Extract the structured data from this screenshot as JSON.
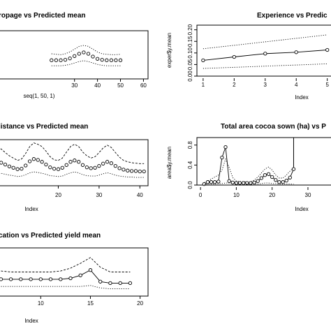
{
  "chart_data": [
    {
      "type": "line",
      "title": "ropage vs Predicted mean",
      "xlabel": "seq(1, 50, 1)",
      "ylabel": "",
      "xlim": [
        0,
        62
      ],
      "ylim": [
        0,
        1
      ],
      "x_ticks": [
        "30",
        "40",
        "50",
        "60"
      ],
      "y_ticks": [],
      "x": [
        20,
        22,
        24,
        26,
        28,
        30,
        32,
        34,
        36,
        38,
        40,
        42,
        44,
        46,
        48,
        50
      ],
      "series": [
        {
          "role": "upper",
          "style": "dotted",
          "values": [
            0.5,
            0.49,
            0.48,
            0.5,
            0.54,
            0.6,
            0.66,
            0.68,
            0.66,
            0.6,
            0.54,
            0.5,
            0.49,
            0.48,
            0.48,
            0.49
          ]
        },
        {
          "role": "mean",
          "style": "points",
          "values": [
            0.36,
            0.36,
            0.36,
            0.37,
            0.4,
            0.45,
            0.5,
            0.53,
            0.5,
            0.44,
            0.39,
            0.37,
            0.36,
            0.36,
            0.36,
            0.36
          ]
        },
        {
          "role": "lower",
          "style": "dotted",
          "values": [
            0.24,
            0.24,
            0.24,
            0.25,
            0.27,
            0.3,
            0.33,
            0.35,
            0.33,
            0.3,
            0.27,
            0.25,
            0.24,
            0.24,
            0.24,
            0.24
          ]
        }
      ]
    },
    {
      "type": "line",
      "title": "Experience vs Predic",
      "xlabel": "Index",
      "ylabel": "exper$y.mean",
      "xlim": [
        0.8,
        5.3
      ],
      "ylim": [
        0,
        0.22
      ],
      "x_ticks": [
        "1",
        "2",
        "3",
        "4",
        "5"
      ],
      "y_ticks": [
        "0.00",
        "0.05",
        "0.10",
        "0.15",
        "0.20"
      ],
      "x": [
        1,
        2,
        3,
        4,
        5
      ],
      "series": [
        {
          "role": "upper",
          "style": "dotted",
          "values": [
            0.118,
            0.133,
            0.148,
            0.163,
            0.178
          ]
        },
        {
          "role": "mean",
          "style": "line-points",
          "values": [
            0.068,
            0.083,
            0.097,
            0.103,
            0.113
          ]
        },
        {
          "role": "lower",
          "style": "dotted",
          "values": [
            0.033,
            0.038,
            0.043,
            0.048,
            0.053
          ]
        }
      ]
    },
    {
      "type": "line",
      "title": "listance vs Predicted mean",
      "xlabel": "Index",
      "ylabel": "",
      "xlim": [
        4,
        42
      ],
      "ylim": [
        0,
        1
      ],
      "x_ticks": [
        "20",
        "30",
        "40"
      ],
      "y_ticks": [],
      "x": [
        5,
        6,
        7,
        8,
        9,
        10,
        11,
        12,
        13,
        14,
        15,
        16,
        17,
        18,
        19,
        20,
        21,
        22,
        23,
        24,
        25,
        26,
        27,
        28,
        29,
        30,
        31,
        32,
        33,
        34,
        35,
        36,
        37,
        38,
        39,
        40,
        41
      ],
      "series": [
        {
          "role": "upper",
          "style": "dashed",
          "values": [
            0.78,
            0.8,
            0.72,
            0.65,
            0.6,
            0.55,
            0.58,
            0.7,
            0.85,
            0.93,
            0.9,
            0.85,
            0.75,
            0.63,
            0.56,
            0.55,
            0.6,
            0.73,
            0.85,
            0.9,
            0.85,
            0.73,
            0.65,
            0.6,
            0.63,
            0.72,
            0.82,
            0.88,
            0.83,
            0.72,
            0.62,
            0.55,
            0.52,
            0.5,
            0.49,
            0.48,
            0.48
          ]
        },
        {
          "role": "mean",
          "style": "points",
          "values": [
            0.48,
            0.5,
            0.46,
            0.42,
            0.39,
            0.36,
            0.37,
            0.44,
            0.53,
            0.58,
            0.56,
            0.52,
            0.46,
            0.4,
            0.37,
            0.36,
            0.39,
            0.45,
            0.52,
            0.55,
            0.52,
            0.45,
            0.4,
            0.38,
            0.39,
            0.43,
            0.48,
            0.52,
            0.49,
            0.43,
            0.38,
            0.35,
            0.33,
            0.32,
            0.32,
            0.31,
            0.31
          ]
        },
        {
          "role": "lower",
          "style": "dotted",
          "values": [
            0.26,
            0.27,
            0.25,
            0.23,
            0.22,
            0.2,
            0.21,
            0.24,
            0.28,
            0.3,
            0.29,
            0.27,
            0.25,
            0.22,
            0.21,
            0.2,
            0.21,
            0.25,
            0.28,
            0.3,
            0.28,
            0.24,
            0.22,
            0.21,
            0.21,
            0.23,
            0.26,
            0.28,
            0.26,
            0.23,
            0.21,
            0.2,
            0.19,
            0.19,
            0.18,
            0.18,
            0.18
          ]
        }
      ]
    },
    {
      "type": "line",
      "title": "Total area cocoa sown (ha) vs P",
      "xlabel": "Index",
      "ylabel": "area$y.mean",
      "xlim": [
        -1,
        38
      ],
      "ylim": [
        0,
        0.95
      ],
      "x_ticks": [
        "0",
        "10",
        "20",
        "30"
      ],
      "y_ticks": [
        "0.0",
        "0.4",
        "0.8"
      ],
      "x": [
        1,
        2,
        3,
        4,
        5,
        6,
        7,
        8,
        9,
        10,
        11,
        12,
        13,
        14,
        15,
        16,
        17,
        18,
        19,
        20,
        21,
        22,
        23,
        24,
        25,
        26
      ],
      "series": [
        {
          "role": "upper",
          "style": "dotted",
          "values": [
            0.05,
            0.08,
            0.12,
            0.16,
            0.2,
            0.3,
            0.52,
            0.35,
            0.15,
            0.08,
            0.07,
            0.07,
            0.06,
            0.06,
            0.1,
            0.16,
            0.24,
            0.32,
            0.36,
            0.3,
            0.2,
            0.14,
            0.14,
            0.2,
            0.28,
            0.35
          ]
        },
        {
          "role": "mean",
          "style": "line-points",
          "values": [
            0.02,
            0.06,
            0.06,
            0.06,
            0.07,
            0.55,
            0.76,
            0.08,
            0.05,
            0.04,
            0.04,
            0.04,
            0.04,
            0.04,
            0.05,
            0.08,
            0.14,
            0.2,
            0.22,
            0.16,
            0.1,
            0.06,
            0.06,
            0.09,
            0.15,
            0.32
          ]
        },
        {
          "role": "lower",
          "style": "dotted",
          "values": [
            0.01,
            0.02,
            0.02,
            0.02,
            0.03,
            0.03,
            0.04,
            0.04,
            0.03,
            0.02,
            0.02,
            0.02,
            0.02,
            0.02,
            0.02,
            0.02,
            0.03,
            0.04,
            0.04,
            0.03,
            0.03,
            0.02,
            0.02,
            0.02,
            0.02,
            0.02
          ]
        }
      ],
      "annotation_vline_x": 26
    },
    {
      "type": "line",
      "title": "cation vs Predicted yield mean",
      "xlabel": "Index",
      "ylabel": "",
      "xlim": [
        5.2,
        20.8
      ],
      "ylim": [
        0,
        1
      ],
      "x_ticks": [
        "10",
        "15",
        "20"
      ],
      "y_ticks": [],
      "x": [
        6,
        7,
        8,
        9,
        10,
        11,
        12,
        13,
        14,
        15,
        16,
        17,
        18,
        19
      ],
      "series": [
        {
          "role": "upper",
          "style": "dashed",
          "values": [
            0.52,
            0.5,
            0.5,
            0.5,
            0.5,
            0.5,
            0.52,
            0.58,
            0.68,
            0.8,
            0.6,
            0.5,
            0.5,
            0.5
          ]
        },
        {
          "role": "mean",
          "style": "line-points",
          "values": [
            0.35,
            0.35,
            0.35,
            0.35,
            0.35,
            0.35,
            0.35,
            0.37,
            0.43,
            0.54,
            0.3,
            0.27,
            0.27,
            0.27
          ]
        },
        {
          "role": "lower",
          "style": "dotted",
          "values": [
            0.2,
            0.2,
            0.2,
            0.2,
            0.2,
            0.2,
            0.2,
            0.2,
            0.2,
            0.22,
            0.17,
            0.15,
            0.15,
            0.15
          ]
        }
      ]
    }
  ]
}
